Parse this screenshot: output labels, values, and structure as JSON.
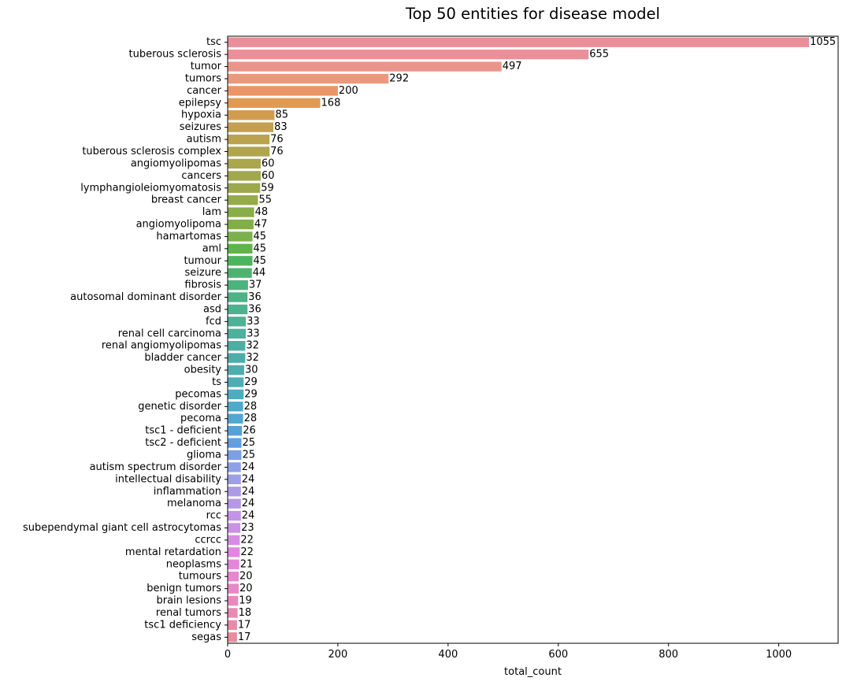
{
  "chart_data": {
    "type": "bar",
    "orientation": "horizontal",
    "title": "Top 50 entities for disease model",
    "xlabel": "total_count",
    "ylabel": "",
    "xlim": [
      0,
      1107.75
    ],
    "xticks": [
      0,
      200,
      400,
      600,
      800,
      1000
    ],
    "grid": false,
    "categories": [
      "tsc",
      "tuberous sclerosis",
      "tumor",
      "tumors",
      "cancer",
      "epilepsy",
      "hypoxia",
      "seizures",
      "autism",
      "tuberous sclerosis complex",
      "angiomyolipomas",
      "cancers",
      "lymphangioleiomyomatosis",
      "breast cancer",
      "lam",
      "angiomyolipoma",
      "hamartomas",
      "aml",
      "tumour",
      "seizure",
      "fibrosis",
      "autosomal dominant disorder",
      "asd",
      "fcd",
      "renal cell carcinoma",
      "renal angiomyolipomas",
      "bladder cancer",
      "obesity",
      "ts",
      "pecomas",
      "genetic disorder",
      "pecoma",
      "tsc1 - deficient",
      "tsc2 - deficient",
      "glioma",
      "autism spectrum disorder",
      "intellectual disability",
      "inflammation",
      "melanoma",
      "rcc",
      "subependymal giant cell astrocytomas",
      "ccrcc",
      "mental retardation",
      "neoplasms",
      "tumours",
      "benign tumors",
      "brain lesions",
      "renal tumors",
      "tsc1 deficiency",
      "segas"
    ],
    "values": [
      1055,
      655,
      497,
      292,
      200,
      168,
      85,
      83,
      76,
      76,
      60,
      60,
      59,
      55,
      48,
      47,
      45,
      45,
      45,
      44,
      37,
      36,
      36,
      33,
      33,
      32,
      32,
      30,
      29,
      29,
      28,
      28,
      26,
      25,
      25,
      24,
      24,
      24,
      24,
      24,
      23,
      22,
      22,
      21,
      20,
      20,
      19,
      18,
      17,
      17
    ],
    "colors": [
      "#ea8e9a",
      "#ea909a",
      "#ea958b",
      "#e99a7e",
      "#e99565",
      "#e09a51",
      "#d29c50",
      "#c59f4e",
      "#baa24f",
      "#b0a44d",
      "#a9a64c",
      "#a2a84c",
      "#9ca84b",
      "#95aa4a",
      "#8aad49",
      "#82ae48",
      "#7bb04c",
      "#5fb54b",
      "#4db45e",
      "#4cb46e",
      "#4bb37c",
      "#4cb287",
      "#4cb18f",
      "#4cb196",
      "#4cb09c",
      "#4cafa2",
      "#4caea9",
      "#4caeaf",
      "#4eadb6",
      "#4facbe",
      "#50a9c7",
      "#53a6cf",
      "#56a2d8",
      "#619fe0",
      "#7ca0e6",
      "#8ea0e7",
      "#9d9fe7",
      "#ab9be7",
      "#b797e7",
      "#c393e7",
      "#cd8fe6",
      "#d88be5",
      "#e287e0",
      "#e585d8",
      "#e787cf",
      "#e887c6",
      "#e888bd",
      "#e88ab2",
      "#e98ba8",
      "#e98c9f"
    ]
  }
}
